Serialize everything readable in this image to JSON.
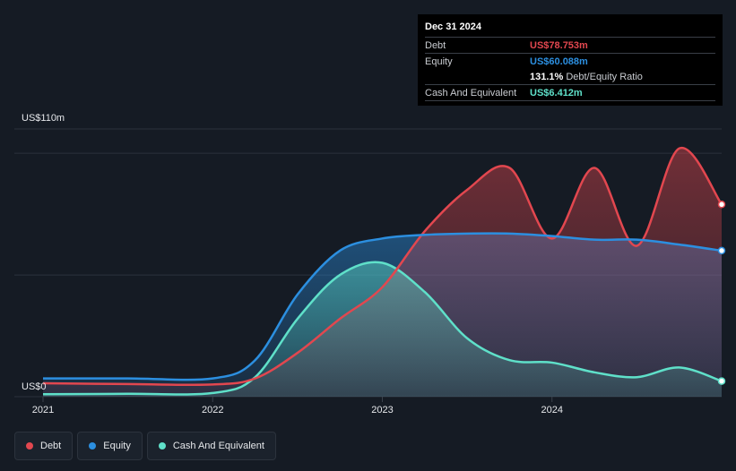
{
  "chart_data": {
    "type": "area",
    "y_axis_labels": [
      "US$110m",
      "US$0"
    ],
    "ylim": [
      0,
      110
    ],
    "xlim": [
      2021.0,
      2025.0
    ],
    "x_ticks": [
      {
        "value": 2021.0,
        "label": "2021"
      },
      {
        "value": 2022.0,
        "label": "2022"
      },
      {
        "value": 2023.0,
        "label": "2023"
      },
      {
        "value": 2024.0,
        "label": "2024"
      }
    ],
    "gridlines": [
      0,
      50,
      100,
      110
    ],
    "series": [
      {
        "name": "Debt",
        "color": "#e2474f",
        "points": [
          [
            2021.0,
            5.5
          ],
          [
            2021.5,
            5.2
          ],
          [
            2022.0,
            5.0
          ],
          [
            2022.25,
            7.5
          ],
          [
            2022.5,
            18
          ],
          [
            2022.75,
            32
          ],
          [
            2023.0,
            45
          ],
          [
            2023.25,
            68
          ],
          [
            2023.5,
            85
          ],
          [
            2023.75,
            94
          ],
          [
            2024.0,
            65
          ],
          [
            2024.25,
            94
          ],
          [
            2024.5,
            62
          ],
          [
            2024.75,
            102
          ],
          [
            2025.0,
            79
          ]
        ]
      },
      {
        "name": "Equity",
        "color": "#2c8fe0",
        "points": [
          [
            2021.0,
            7.5
          ],
          [
            2021.5,
            7.5
          ],
          [
            2022.0,
            7.5
          ],
          [
            2022.25,
            15
          ],
          [
            2022.5,
            42
          ],
          [
            2022.75,
            60
          ],
          [
            2023.0,
            65
          ],
          [
            2023.25,
            66.5
          ],
          [
            2023.5,
            67
          ],
          [
            2023.75,
            67
          ],
          [
            2024.0,
            66
          ],
          [
            2024.25,
            64.5
          ],
          [
            2024.5,
            64.5
          ],
          [
            2024.75,
            62.5
          ],
          [
            2025.0,
            60
          ]
        ]
      },
      {
        "name": "Cash And Equivalent",
        "color": "#5fe0c9",
        "points": [
          [
            2021.0,
            1
          ],
          [
            2021.5,
            1.2
          ],
          [
            2022.0,
            1.5
          ],
          [
            2022.25,
            8
          ],
          [
            2022.5,
            32
          ],
          [
            2022.75,
            50
          ],
          [
            2023.0,
            55
          ],
          [
            2023.25,
            43
          ],
          [
            2023.5,
            24
          ],
          [
            2023.75,
            15
          ],
          [
            2024.0,
            14
          ],
          [
            2024.25,
            10
          ],
          [
            2024.5,
            8
          ],
          [
            2024.75,
            12
          ],
          [
            2025.0,
            6.4
          ]
        ]
      }
    ],
    "legend_position": "bottom-left",
    "grid": true
  },
  "tooltip": {
    "date": "Dec 31 2024",
    "rows": [
      {
        "label": "Debt",
        "value": "US$78.753m",
        "color": "#e2474f"
      },
      {
        "label": "Equity",
        "value": "US$60.088m",
        "color": "#2c8fe0"
      }
    ],
    "ratio_value": "131.1%",
    "ratio_label": "Debt/Equity Ratio",
    "cash": {
      "label": "Cash And Equivalent",
      "value": "US$6.412m",
      "color": "#5fe0c9"
    }
  },
  "legend": [
    {
      "label": "Debt",
      "color": "#e2474f"
    },
    {
      "label": "Equity",
      "color": "#2c8fe0"
    },
    {
      "label": "Cash And Equivalent",
      "color": "#5fe0c9"
    }
  ]
}
